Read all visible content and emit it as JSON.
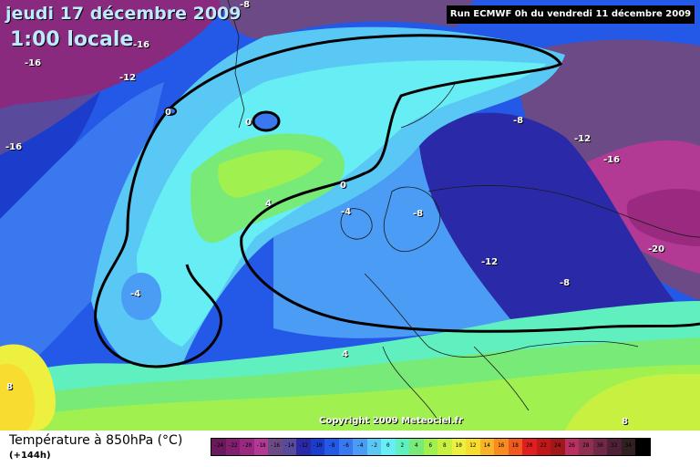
{
  "header": {
    "date_title": "jeudi 17 décembre 2009",
    "time_title": "1:00 locale",
    "run_info": "Run ECMWF 0h du vendredi 11 décembre 2009"
  },
  "map": {
    "copyright": "Copyright 2009 Meteociel.fr",
    "isotherm_labels": [
      "-8",
      "-16",
      "-16",
      "-12",
      "0",
      "0",
      "-16",
      "-8",
      "-12",
      "-16",
      "0",
      "4",
      "-4",
      "-8",
      "-12",
      "-8",
      "-20",
      "-4",
      "4",
      "8",
      "8"
    ]
  },
  "legend": {
    "title": "Température à 850hPa (°C)",
    "subtitle": "(+144h)",
    "scale": [
      {
        "value": "-24",
        "color": "#6a1a5c"
      },
      {
        "value": "-22",
        "color": "#80206e"
      },
      {
        "value": "-20",
        "color": "#992a80"
      },
      {
        "value": "-18",
        "color": "#b23a94"
      },
      {
        "value": "-16",
        "color": "#6b4a86"
      },
      {
        "value": "-14",
        "color": "#5a4a9c"
      },
      {
        "value": "-12",
        "color": "#2a2aa8"
      },
      {
        "value": "-10",
        "color": "#1c3ccc"
      },
      {
        "value": "-8",
        "color": "#2458e6"
      },
      {
        "value": "-6",
        "color": "#3a78f0"
      },
      {
        "value": "-4",
        "color": "#4a9cf4"
      },
      {
        "value": "-2",
        "color": "#5ac8f4"
      },
      {
        "value": "0",
        "color": "#66eef4"
      },
      {
        "value": "2",
        "color": "#60f0c0"
      },
      {
        "value": "4",
        "color": "#78ea78"
      },
      {
        "value": "6",
        "color": "#a0f050"
      },
      {
        "value": "8",
        "color": "#c8f040"
      },
      {
        "value": "10",
        "color": "#eef040"
      },
      {
        "value": "12",
        "color": "#f8dc30"
      },
      {
        "value": "14",
        "color": "#f8b428"
      },
      {
        "value": "16",
        "color": "#f88c20"
      },
      {
        "value": "18",
        "color": "#f05a20"
      },
      {
        "value": "20",
        "color": "#e02020"
      },
      {
        "value": "22",
        "color": "#c01818"
      },
      {
        "value": "24",
        "color": "#a01818"
      },
      {
        "value": "26",
        "color": "#b83060"
      },
      {
        "value": "28",
        "color": "#903050"
      },
      {
        "value": "30",
        "color": "#702848"
      },
      {
        "value": "32",
        "color": "#502038"
      },
      {
        "value": "34",
        "color": "#302020"
      },
      {
        "value": "36",
        "color": "#000000"
      }
    ]
  }
}
